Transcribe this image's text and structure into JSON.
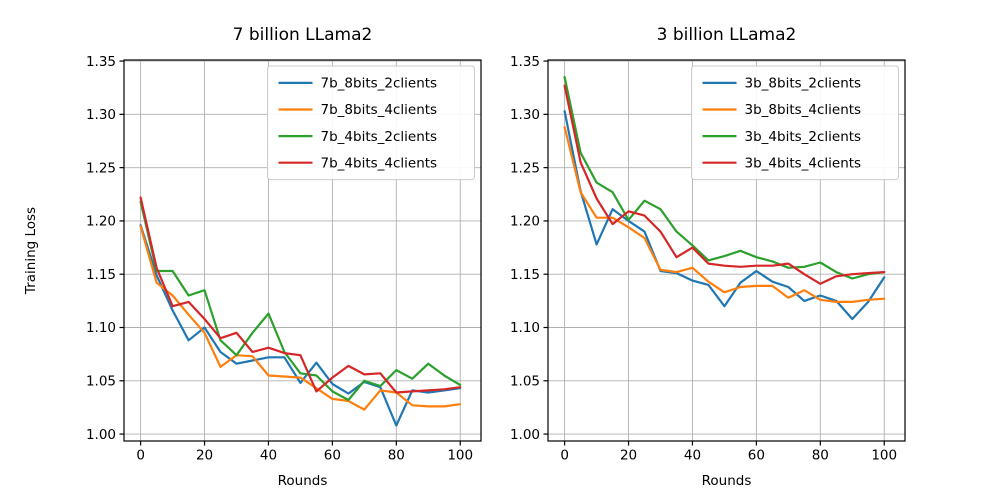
{
  "chart_data": [
    {
      "type": "line",
      "title": "7 billion LLama2",
      "xlabel": "Rounds",
      "ylabel": "Training Loss",
      "grid": true,
      "legend_position": "upper right",
      "xlim": [
        -5.2,
        106.5
      ],
      "ylim": [
        0.9935,
        1.351
      ],
      "xticks": [
        0,
        20,
        40,
        60,
        80,
        100
      ],
      "xtick_labels": [
        "0",
        "20",
        "40",
        "60",
        "80",
        "100"
      ],
      "yticks": [
        1.0,
        1.05,
        1.1,
        1.15,
        1.2,
        1.25,
        1.3,
        1.35
      ],
      "ytick_labels": [
        "1.00",
        "1.05",
        "1.10",
        "1.15",
        "1.20",
        "1.25",
        "1.30",
        "1.35"
      ],
      "x": [
        0,
        5,
        10,
        15,
        20,
        25,
        30,
        35,
        40,
        45,
        50,
        55,
        60,
        65,
        70,
        75,
        80,
        85,
        90,
        95,
        100
      ],
      "grid_color": "#b0b0b0",
      "series": [
        {
          "name": "7b_8bits_2clients",
          "color": "#1f77b4",
          "values": [
            1.196,
            1.149,
            1.116,
            1.088,
            1.1,
            1.077,
            1.066,
            1.069,
            1.072,
            1.072,
            1.048,
            1.067,
            1.047,
            1.038,
            1.049,
            1.044,
            1.008,
            1.041,
            1.039,
            1.041,
            1.043
          ]
        },
        {
          "name": "7b_8bits_4clients",
          "color": "#ff7f0e",
          "values": [
            1.195,
            1.142,
            1.13,
            1.112,
            1.095,
            1.063,
            1.074,
            1.073,
            1.055,
            1.054,
            1.053,
            1.043,
            1.033,
            1.031,
            1.023,
            1.041,
            1.039,
            1.027,
            1.026,
            1.026,
            1.028
          ]
        },
        {
          "name": "7b_4bits_2clients",
          "color": "#2ca02c",
          "values": [
            1.218,
            1.153,
            1.153,
            1.13,
            1.135,
            1.088,
            1.074,
            1.095,
            1.113,
            1.077,
            1.057,
            1.055,
            1.04,
            1.032,
            1.05,
            1.045,
            1.06,
            1.052,
            1.066,
            1.055,
            1.046
          ]
        },
        {
          "name": "7b_4bits_4clients",
          "color": "#d62728",
          "values": [
            1.222,
            1.156,
            1.12,
            1.124,
            1.108,
            1.09,
            1.095,
            1.077,
            1.081,
            1.076,
            1.074,
            1.04,
            1.053,
            1.064,
            1.056,
            1.057,
            1.039,
            1.04,
            1.041,
            1.042,
            1.044
          ]
        }
      ]
    },
    {
      "type": "line",
      "title": "3 billion LLama2",
      "xlabel": "Rounds",
      "ylabel": "",
      "grid": true,
      "legend_position": "upper right",
      "xlim": [
        -5.2,
        106.5
      ],
      "ylim": [
        0.9935,
        1.351
      ],
      "xticks": [
        0,
        20,
        40,
        60,
        80,
        100
      ],
      "xtick_labels": [
        "0",
        "20",
        "40",
        "60",
        "80",
        "100"
      ],
      "yticks": [
        1.0,
        1.05,
        1.1,
        1.15,
        1.2,
        1.25,
        1.3,
        1.35
      ],
      "ytick_labels": [
        "1.00",
        "1.05",
        "1.10",
        "1.15",
        "1.20",
        "1.25",
        "1.30",
        "1.35"
      ],
      "x": [
        0,
        5,
        10,
        15,
        20,
        25,
        30,
        35,
        40,
        45,
        50,
        55,
        60,
        65,
        70,
        75,
        80,
        85,
        90,
        95,
        100
      ],
      "grid_color": "#b0b0b0",
      "series": [
        {
          "name": "3b_8bits_2clients",
          "color": "#1f77b4",
          "values": [
            1.303,
            1.228,
            1.178,
            1.211,
            1.2,
            1.19,
            1.153,
            1.151,
            1.144,
            1.14,
            1.12,
            1.142,
            1.153,
            1.143,
            1.138,
            1.125,
            1.13,
            1.125,
            1.108,
            1.124,
            1.147
          ]
        },
        {
          "name": "3b_8bits_4clients",
          "color": "#ff7f0e",
          "values": [
            1.288,
            1.227,
            1.203,
            1.203,
            1.194,
            1.184,
            1.154,
            1.152,
            1.156,
            1.143,
            1.133,
            1.138,
            1.139,
            1.139,
            1.128,
            1.135,
            1.126,
            1.124,
            1.124,
            1.126,
            1.127
          ]
        },
        {
          "name": "3b_4bits_2clients",
          "color": "#2ca02c",
          "values": [
            1.335,
            1.264,
            1.236,
            1.227,
            1.201,
            1.219,
            1.211,
            1.19,
            1.177,
            1.163,
            1.167,
            1.172,
            1.166,
            1.162,
            1.156,
            1.157,
            1.161,
            1.152,
            1.146,
            1.15,
            1.152
          ]
        },
        {
          "name": "3b_4bits_4clients",
          "color": "#d62728",
          "values": [
            1.327,
            1.255,
            1.221,
            1.197,
            1.209,
            1.205,
            1.19,
            1.166,
            1.175,
            1.16,
            1.158,
            1.157,
            1.158,
            1.158,
            1.16,
            1.15,
            1.141,
            1.148,
            1.15,
            1.151,
            1.152
          ]
        }
      ]
    }
  ],
  "style": {
    "background": "#ffffff",
    "grid_color": "#b0b0b0",
    "spine_color": "#000000",
    "legend_border_color": "#cccccc",
    "legend_background": "#ffffff"
  }
}
